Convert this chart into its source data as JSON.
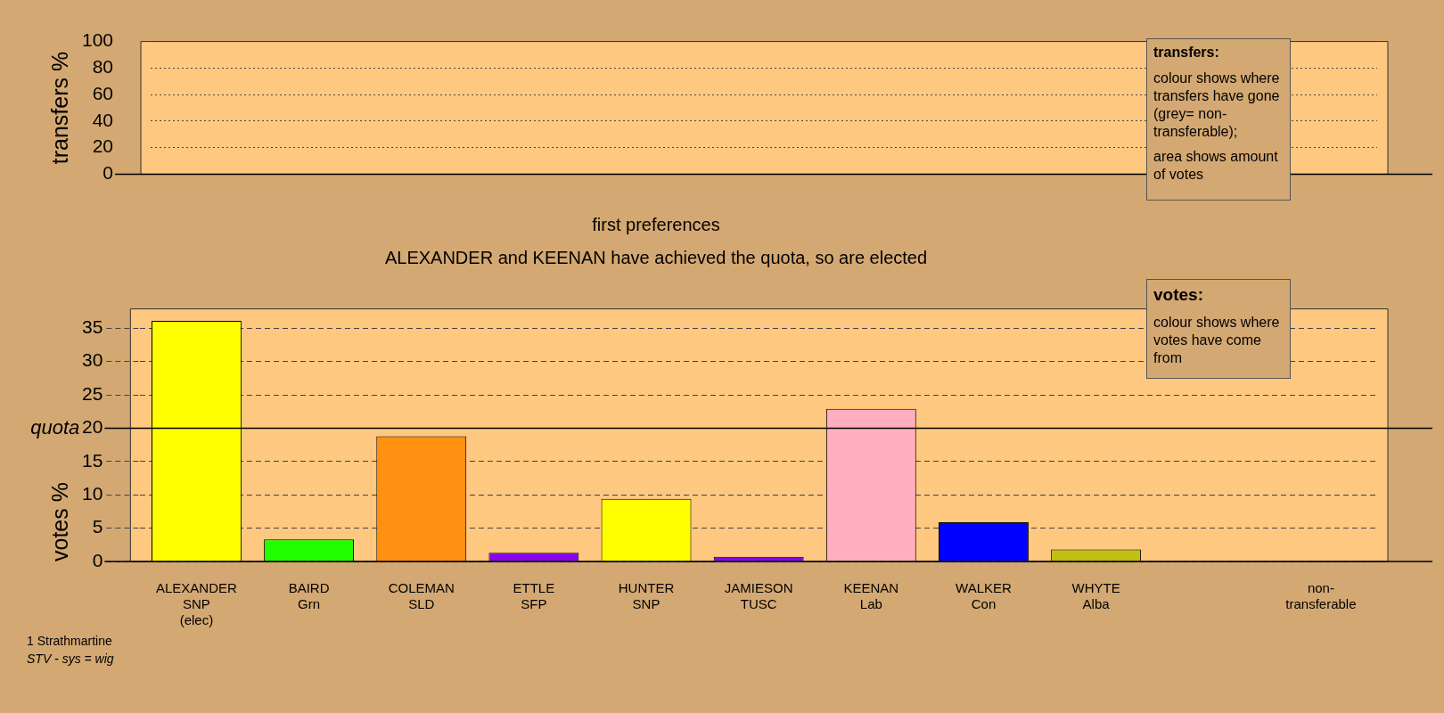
{
  "chart_data": [
    {
      "type": "bar",
      "ylabel": "transfers %",
      "categories": [
        null,
        null,
        null,
        null,
        null,
        null,
        null,
        null,
        null,
        null,
        null
      ],
      "values": [
        null,
        null,
        null,
        null,
        null,
        null,
        null,
        null,
        null,
        null,
        null
      ],
      "tick_labels": "y",
      "ylim": [
        0,
        100
      ],
      "yticks": [
        0,
        20,
        40,
        60,
        80,
        100
      ],
      "grid": "y",
      "legend": false,
      "annotations": [
        "transfers:",
        "colour shows where transfers have gone (grey= non-transferable);",
        "area shows amount of votes"
      ]
    },
    {
      "type": "bar",
      "title": "first preferences",
      "subtitle": "ALEXANDER and KEENAN have achieved the quota, so are elected",
      "ylabel": "votes %",
      "categories": [
        "ALEXANDER\nSNP\n(elec)",
        "BAIRD\nGrn",
        "COLEMAN\nSLD",
        "ETTLE\nSFP",
        "HUNTER\nSNP",
        "JAMIESON\nTUSC",
        "KEENAN\nLab",
        "WALKER\nCon",
        "WHYTE\nAlba",
        null,
        "non-\ntransferable"
      ],
      "values": [
        36.1,
        3.3,
        18.8,
        1.3,
        9.4,
        0.7,
        22.9,
        5.9,
        1.8,
        null,
        0
      ],
      "colors": [
        "#ffff00",
        "#22ff00",
        "#ff9010",
        "#8800ee",
        "#ffff00",
        "#8800ee",
        "#ffaec0",
        "#0000ff",
        "#c0c010",
        "#999999",
        "#999999"
      ],
      "ylim": [
        0,
        37.9
      ],
      "yticks": [
        0,
        5,
        10,
        15,
        20,
        25,
        30,
        35
      ],
      "grid": "y",
      "legend": false,
      "ref_lines": [
        {
          "axis": "y",
          "value": 20,
          "label": "quota"
        }
      ],
      "annotations": [
        "votes:",
        "colour shows where votes have come from",
        "1 Strathmartine",
        "STV - sys = wig"
      ]
    }
  ]
}
